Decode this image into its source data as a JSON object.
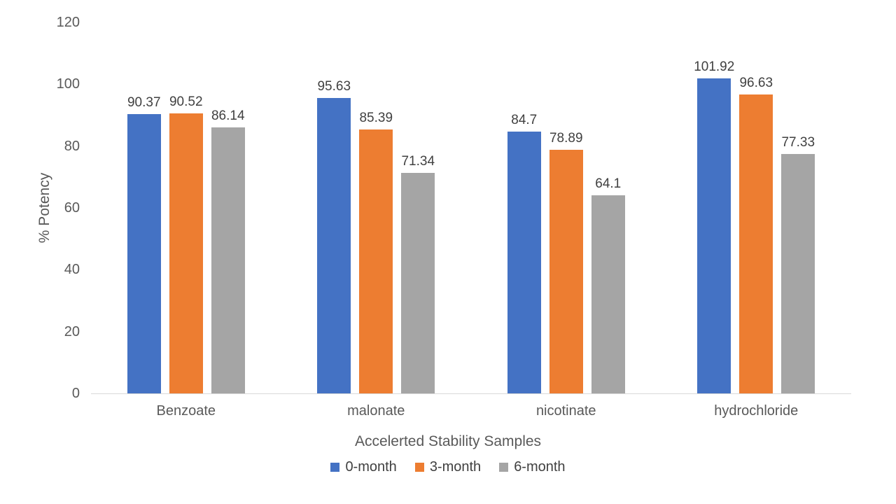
{
  "chart_data": {
    "type": "bar",
    "title": "",
    "xlabel": "Accelerted Stability Samples",
    "ylabel": "% Potency",
    "categories": [
      "Benzoate",
      "malonate",
      "nicotinate",
      "hydrochloride"
    ],
    "series": [
      {
        "name": "0-month",
        "color": "#4472C4",
        "values": [
          90.37,
          95.63,
          84.7,
          101.92
        ]
      },
      {
        "name": "3-month",
        "color": "#ED7D31",
        "values": [
          90.52,
          85.39,
          78.89,
          96.63
        ]
      },
      {
        "name": "6-month",
        "color": "#A5A5A5",
        "values": [
          86.14,
          71.34,
          64.1,
          77.33
        ]
      }
    ],
    "data_labels_shown": true,
    "ylim": [
      0,
      120
    ],
    "yticks": [
      0,
      20,
      40,
      60,
      80,
      100,
      120
    ],
    "grid": false,
    "legend_position": "bottom",
    "axis_line_color": "#D9D9D9",
    "tick_text_color": "#595959",
    "data_label_text_color": "#404040",
    "background_color": "#FFFFFF"
  }
}
